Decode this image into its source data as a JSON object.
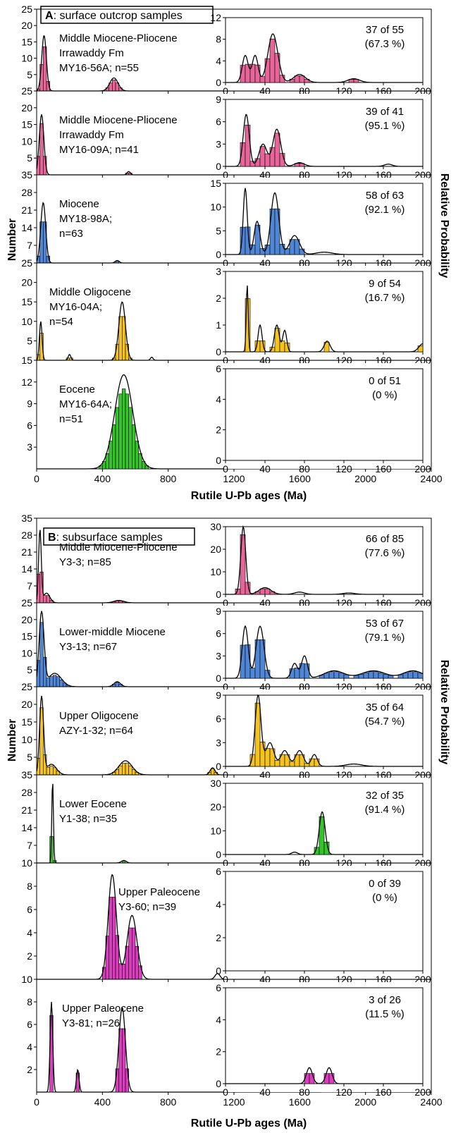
{
  "x_axis_label": "Rutile U-Pb ages (Ma)",
  "y_axis_left_label": "Number",
  "y_axis_right_label": "Relative Probability",
  "main_x_ticks": [
    0,
    400,
    800,
    1200,
    1600,
    2000,
    2400
  ],
  "inset_x_ticks": [
    0,
    40,
    80,
    120,
    160,
    200
  ],
  "colors": {
    "pink": "#e8659a",
    "blue": "#4f86d6",
    "yellow": "#f5c21e",
    "green": "#35c52a",
    "magenta": "#dc3cc0"
  },
  "panels": [
    {
      "id": "A",
      "title_letter": "A",
      "title_text": ": surface outcrop samples"
    },
    {
      "id": "B",
      "title_letter": "B",
      "title_text": ": subsurface samples"
    }
  ],
  "chart_data": [
    {
      "type": "bar",
      "panel": "A",
      "color": "pink",
      "label_lines": [
        "Middle Miocene-Pliocene",
        "Irrawaddy Fm",
        "MY16-56A; n=55"
      ],
      "ratio_lines": [
        "37 of 55",
        "(67.3 %)"
      ],
      "main": {
        "ylim": [
          0,
          25
        ],
        "yticks": [
          5,
          10,
          15,
          20,
          25
        ],
        "peaks": [
          [
            45,
            17,
            14
          ],
          [
            470,
            4,
            25
          ]
        ]
      },
      "inset": {
        "ylim": [
          0,
          12
        ],
        "yticks": [
          0,
          4,
          8,
          12
        ],
        "peaks": [
          [
            20,
            5,
            3
          ],
          [
            30,
            5,
            3
          ],
          [
            48,
            9,
            5
          ],
          [
            75,
            1.5,
            6
          ],
          [
            130,
            0.7,
            6
          ]
        ]
      }
    },
    {
      "type": "bar",
      "panel": "A",
      "color": "pink",
      "label_lines": [
        "Middle Miocene-Pliocene",
        "Irrawaddy Fm",
        "MY16-09A; n=41"
      ],
      "ratio_lines": [
        "39 of 41",
        "(95.1 %)"
      ],
      "main": {
        "ylim": [
          0,
          25
        ],
        "yticks": [
          5,
          10,
          15,
          20,
          25
        ],
        "peaks": [
          [
            30,
            18,
            14
          ],
          [
            560,
            1,
            10
          ]
        ]
      },
      "inset": {
        "ylim": [
          0,
          9
        ],
        "yticks": [
          0,
          3,
          6,
          9
        ],
        "peaks": [
          [
            21,
            7,
            3
          ],
          [
            38,
            3,
            4
          ],
          [
            52,
            5,
            4
          ],
          [
            75,
            0.5,
            5
          ],
          [
            165,
            0.3,
            4
          ]
        ]
      }
    },
    {
      "type": "bar",
      "panel": "A",
      "color": "blue",
      "label_lines": [
        "Miocene",
        "MY18-98A;",
        "n=63"
      ],
      "ratio_lines": [
        "58 of 63",
        "(92.1 %)"
      ],
      "main": {
        "ylim": [
          0,
          35
        ],
        "yticks": [
          7,
          14,
          21,
          28,
          35
        ],
        "peaks": [
          [
            40,
            24,
            15
          ],
          [
            490,
            1,
            12
          ]
        ]
      },
      "inset": {
        "ylim": [
          0,
          15
        ],
        "yticks": [
          0,
          5,
          10,
          15
        ],
        "peaks": [
          [
            20,
            14,
            2
          ],
          [
            32,
            7,
            3
          ],
          [
            50,
            13,
            4
          ],
          [
            70,
            4,
            5
          ],
          [
            100,
            0.5,
            8
          ]
        ]
      }
    },
    {
      "type": "bar",
      "panel": "A",
      "color": "yellow",
      "label_lines": [
        "Middle Oligocene",
        "MY16-04A;",
        "n=54"
      ],
      "ratio_lines": [
        "9 of 54",
        "(16.7 %)"
      ],
      "main": {
        "ylim": [
          0,
          25
        ],
        "yticks": [
          5,
          10,
          15,
          20,
          25
        ],
        "peaks": [
          [
            25,
            10,
            8
          ],
          [
            520,
            15,
            20
          ],
          [
            200,
            1.5,
            8
          ],
          [
            700,
            0.8,
            8
          ]
        ]
      },
      "inset": {
        "ylim": [
          0,
          3
        ],
        "yticks": [
          0,
          1,
          2,
          3
        ],
        "peaks": [
          [
            22,
            2.5,
            1
          ],
          [
            35,
            1,
            2
          ],
          [
            52,
            1,
            2.5
          ],
          [
            60,
            0.8,
            2
          ],
          [
            103,
            0.4,
            3
          ],
          [
            200,
            0.3,
            4
          ]
        ]
      }
    },
    {
      "type": "bar",
      "panel": "A",
      "color": "green",
      "label_lines": [
        "Eocene",
        "MY16-64A;",
        "n=51"
      ],
      "ratio_lines": [
        "0 of 51",
        "(0 %)"
      ],
      "main": {
        "ylim": [
          0,
          15
        ],
        "yticks": [
          3,
          6,
          9,
          12,
          15
        ],
        "peaks": [
          [
            530,
            13,
            55
          ]
        ]
      },
      "inset": {
        "ylim": [
          0,
          6
        ],
        "yticks": [
          0,
          2,
          4,
          6
        ],
        "peaks": []
      }
    },
    {
      "type": "bar",
      "panel": "B",
      "color": "pink",
      "label_lines": [
        "Middle Miocene-Pliocene",
        "Y3-3; n=85"
      ],
      "ratio_lines": [
        "66 of 85",
        "(77.6 %)"
      ],
      "main": {
        "ylim": [
          0,
          35
        ],
        "yticks": [
          7,
          14,
          21,
          28,
          35
        ],
        "peaks": [
          [
            20,
            30,
            8
          ],
          [
            60,
            4,
            20
          ],
          [
            500,
            1,
            30
          ]
        ]
      },
      "inset": {
        "ylim": [
          0,
          30
        ],
        "yticks": [
          0,
          10,
          20,
          30
        ],
        "peaks": [
          [
            18,
            30,
            2.5
          ],
          [
            40,
            3,
            6
          ],
          [
            75,
            1,
            5
          ],
          [
            125,
            0.6,
            6
          ]
        ]
      }
    },
    {
      "type": "bar",
      "panel": "B",
      "color": "blue",
      "label_lines": [
        "Lower-middle Miocene",
        "Y3-13; n=67"
      ],
      "ratio_lines": [
        "53 of 67",
        "(79.1 %)"
      ],
      "main": {
        "ylim": [
          0,
          25
        ],
        "yticks": [
          5,
          10,
          15,
          20,
          25
        ],
        "peaks": [
          [
            30,
            22,
            15
          ],
          [
            110,
            4,
            40
          ],
          [
            490,
            1.5,
            20
          ]
        ]
      },
      "inset": {
        "ylim": [
          0,
          9
        ],
        "yticks": [
          0,
          3,
          6,
          9
        ],
        "peaks": [
          [
            20,
            7,
            3
          ],
          [
            35,
            7,
            4
          ],
          [
            70,
            2,
            3
          ],
          [
            80,
            3,
            3
          ],
          [
            110,
            1,
            10
          ],
          [
            150,
            1,
            12
          ],
          [
            190,
            1,
            10
          ]
        ]
      }
    },
    {
      "type": "bar",
      "panel": "B",
      "color": "yellow",
      "label_lines": [
        "Upper Oligocene",
        "AZY-1-32; n=64"
      ],
      "ratio_lines": [
        "35 of 64",
        "(54.7 %)"
      ],
      "main": {
        "ylim": [
          0,
          25
        ],
        "yticks": [
          5,
          10,
          15,
          20,
          25
        ],
        "peaks": [
          [
            30,
            22,
            12
          ],
          [
            90,
            3,
            30
          ],
          [
            540,
            4,
            40
          ],
          [
            1070,
            2,
            15
          ]
        ]
      },
      "inset": {
        "ylim": [
          0,
          9
        ],
        "yticks": [
          0,
          3,
          6,
          9
        ],
        "peaks": [
          [
            33,
            9,
            3
          ],
          [
            45,
            3,
            4
          ],
          [
            60,
            2,
            4
          ],
          [
            75,
            2,
            4
          ],
          [
            90,
            1.5,
            3
          ],
          [
            130,
            0.3,
            8
          ]
        ]
      }
    },
    {
      "type": "bar",
      "panel": "B",
      "color": "green",
      "label_lines": [
        "Lower Eocene",
        "Y1-38; n=35"
      ],
      "ratio_lines": [
        "32 of 35",
        "(91.4 %)"
      ],
      "main": {
        "ylim": [
          0,
          35
        ],
        "yticks": [
          7,
          14,
          21,
          28,
          35
        ],
        "peaks": [
          [
            97,
            33,
            5
          ],
          [
            530,
            1,
            15
          ]
        ]
      },
      "inset": {
        "ylim": [
          0,
          30
        ],
        "yticks": [
          0,
          10,
          20,
          30
        ],
        "peaks": [
          [
            98,
            18,
            3
          ],
          [
            70,
            1,
            3
          ]
        ]
      }
    },
    {
      "type": "bar",
      "panel": "B",
      "color": "magenta",
      "label_lines": [
        "Upper Paleocene",
        "Y3-60; n=39"
      ],
      "ratio_lines": [
        "0 of 39",
        "(0 %)"
      ],
      "main": {
        "ylim": [
          0,
          10
        ],
        "yticks": [
          2,
          4,
          6,
          8,
          10
        ],
        "peaks": [
          [
            460,
            9,
            25
          ],
          [
            580,
            5.5,
            30
          ],
          [
            1100,
            0.5,
            15
          ]
        ]
      },
      "inset": {
        "ylim": [
          0,
          6
        ],
        "yticks": [
          0,
          2,
          4,
          6
        ],
        "peaks": []
      }
    },
    {
      "type": "bar",
      "panel": "B",
      "color": "magenta",
      "label_lines": [
        "Upper Paleocene",
        "Y3-81; n=26"
      ],
      "ratio_lines": [
        "3 of 26",
        "(11.5 %)"
      ],
      "main": {
        "ylim": [
          0,
          10
        ],
        "yticks": [
          2,
          4,
          6,
          8,
          10
        ],
        "peaks": [
          [
            90,
            8,
            8
          ],
          [
            250,
            2,
            8
          ],
          [
            520,
            7.5,
            20
          ],
          [
            1780,
            0.8,
            15
          ]
        ]
      },
      "inset": {
        "ylim": [
          0,
          6
        ],
        "yticks": [
          0,
          2,
          4,
          6
        ],
        "peaks": [
          [
            85,
            1,
            3
          ],
          [
            105,
            1,
            3
          ]
        ]
      }
    }
  ]
}
